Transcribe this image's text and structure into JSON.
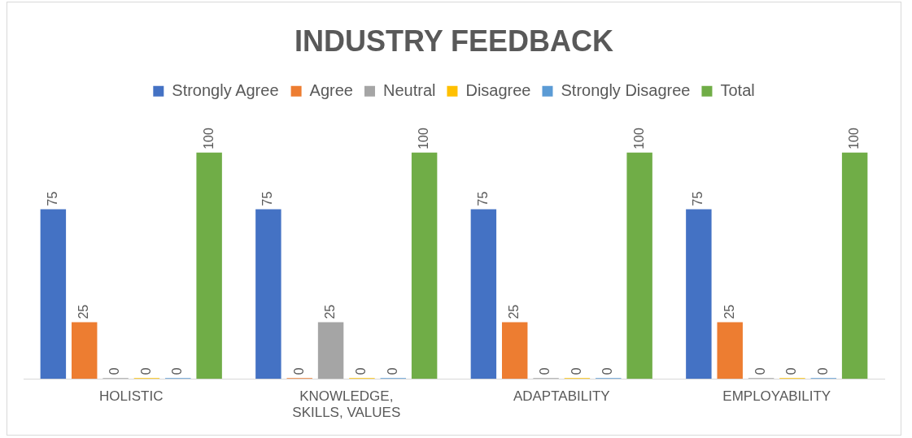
{
  "chart_data": {
    "type": "bar",
    "title": "INDUSTRY FEEDBACK",
    "categories": [
      "HOLISTIC",
      "KNOWLEDGE, SKILLS, VALUES",
      "ADAPTABILITY",
      "EMPLOYABILITY"
    ],
    "series": [
      {
        "name": "Strongly Agree",
        "color": "#4472c4",
        "values": [
          75,
          75,
          75,
          75
        ]
      },
      {
        "name": "Agree",
        "color": "#ed7d31",
        "values": [
          25,
          0,
          25,
          25
        ]
      },
      {
        "name": "Neutral",
        "color": "#a5a5a5",
        "values": [
          0,
          25,
          0,
          0
        ]
      },
      {
        "name": "Disagree",
        "color": "#ffc000",
        "values": [
          0,
          0,
          0,
          0
        ]
      },
      {
        "name": "Strongly Disagree",
        "color": "#5b9bd5",
        "values": [
          0,
          0,
          0,
          0
        ]
      },
      {
        "name": "Total",
        "color": "#70ad47",
        "values": [
          100,
          100,
          100,
          100
        ]
      }
    ],
    "data_labels": true,
    "legend": "top",
    "grid": false
  }
}
